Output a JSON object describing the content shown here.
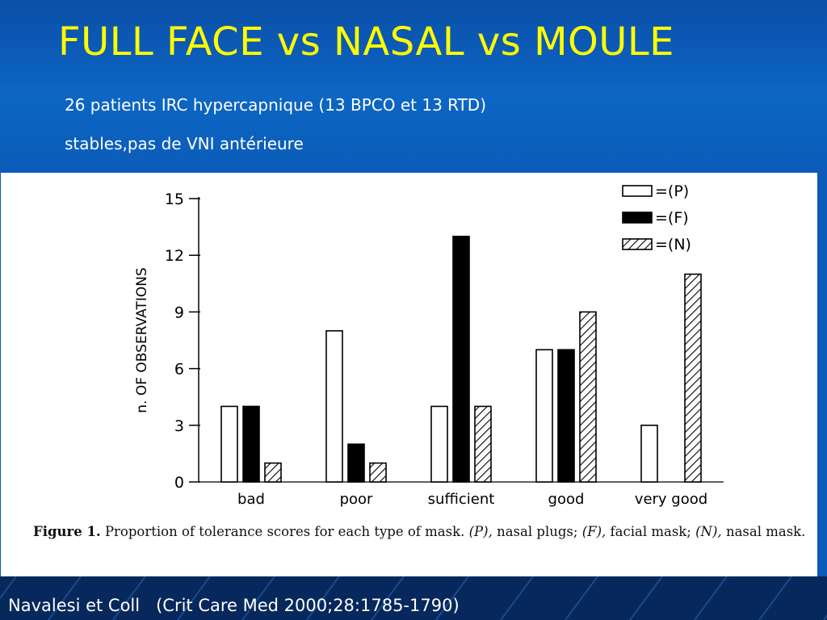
{
  "slide": {
    "title": "FULL FACE vs NASAL vs MOULE",
    "subtitle_line1": "26 patients IRC hypercapnique (13 BPCO et 13 RTD)",
    "subtitle_line2": "stables,pas de VNI antérieure",
    "credit_authors": "Navalesi et Coll",
    "credit_ref": "(Crit Care Med 2000;28:1785-1790)"
  },
  "colors": {
    "header_blue": "#0b5cb8",
    "title_yellow": "#ffff00",
    "footer_navy": "#06285c"
  },
  "figure": {
    "caption_label": "Figure 1.",
    "caption_text": "Proportion of tolerance scores for each type of mask.",
    "caption_p_key": "(P),",
    "caption_p_val": "nasal plugs;",
    "caption_f_key": "(F),",
    "caption_f_val": "facial mask;",
    "caption_n_key": "(N),",
    "caption_n_val": "nasal mask."
  },
  "chart_data": {
    "type": "bar",
    "title": "",
    "xlabel": "",
    "ylabel": "n. OF OBSERVATIONS",
    "ylim": [
      0,
      15
    ],
    "yticks": [
      0,
      3,
      6,
      9,
      12,
      15
    ],
    "categories": [
      "bad",
      "poor",
      "sufficient",
      "good",
      "very good"
    ],
    "series": [
      {
        "name": "=(P)",
        "fill": "white",
        "values": [
          4,
          8,
          4,
          7,
          3
        ]
      },
      {
        "name": "=(F)",
        "fill": "black",
        "values": [
          4,
          2,
          13,
          7,
          0
        ]
      },
      {
        "name": "=(N)",
        "fill": "hatched",
        "values": [
          1,
          1,
          4,
          9,
          11
        ]
      }
    ],
    "legend_position": "top-right",
    "grid": false
  }
}
